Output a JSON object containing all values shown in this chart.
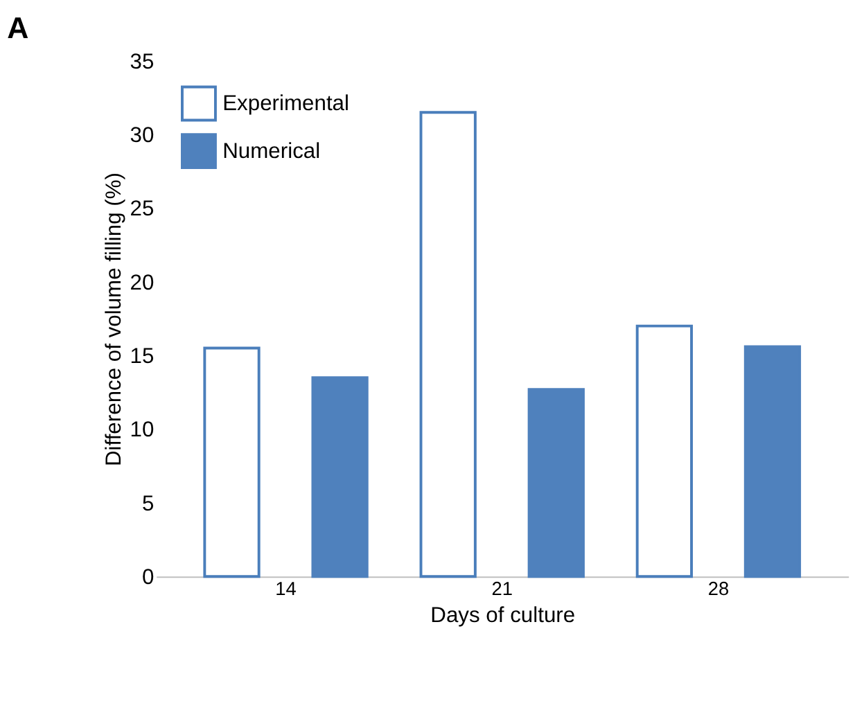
{
  "chart_data": {
    "type": "bar",
    "title": "A",
    "xlabel": "Days of culture",
    "ylabel": "Difference of volume filling (%)",
    "categories": [
      "14",
      "21",
      "28"
    ],
    "series": [
      {
        "name": "Experimental",
        "color": "#4a7ebb",
        "values": [
          15.5,
          31.5,
          17.0
        ]
      },
      {
        "name": "Numerical",
        "color": "#4f81bd",
        "values": [
          13.5,
          12.7,
          15.6
        ]
      }
    ],
    "ylim": [
      0,
      35
    ],
    "yticks": [
      0,
      5,
      10,
      15,
      20,
      25,
      30,
      35
    ],
    "grid": false,
    "legend": "top left"
  }
}
